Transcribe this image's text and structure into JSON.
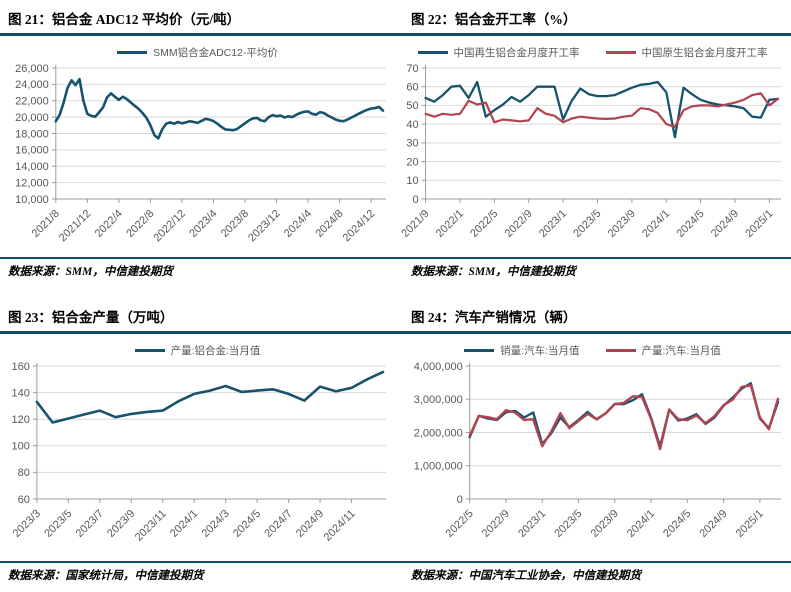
{
  "theme": {
    "rule_color": "#134d66",
    "grid_color": "#d9d9d9",
    "axis_color": "#9c9c9c",
    "tick_text_color": "#595959",
    "blue": "#17536e",
    "red": "#b2434f"
  },
  "chart_data": [
    {
      "type": "line",
      "title": "图 21：铝合金 ADC12 平均价（元/吨）",
      "source": "数据来源：SMM，中信建投期货",
      "legend_position": "top",
      "grid": true,
      "ylim": [
        10000,
        26000
      ],
      "y_step": 2000,
      "y_format": "comma",
      "x_start": "2021/8",
      "x_freq": "semi-monthly",
      "x_ticks": [
        "2021/8",
        "2021/12",
        "2022/4",
        "2022/8",
        "2022/12",
        "2023/4",
        "2023/8",
        "2023/12",
        "2024/4",
        "2024/8",
        "2024/12"
      ],
      "x_tick_every": 8,
      "series": [
        {
          "name": "SMM铝合金ADC12-平均价",
          "color": "#17536e",
          "width": 2.6,
          "values": [
            19500,
            20300,
            21800,
            23600,
            24500,
            23900,
            24650,
            22000,
            20400,
            20150,
            20050,
            20600,
            21200,
            22400,
            22900,
            22500,
            22100,
            22500,
            22200,
            21800,
            21400,
            21000,
            20500,
            19900,
            19000,
            17800,
            17400,
            18500,
            19200,
            19350,
            19200,
            19400,
            19250,
            19350,
            19500,
            19400,
            19300,
            19550,
            19800,
            19700,
            19500,
            19200,
            18800,
            18500,
            18450,
            18400,
            18550,
            18900,
            19250,
            19600,
            19850,
            19900,
            19600,
            19500,
            20000,
            20250,
            20100,
            20200,
            19950,
            20100,
            20000,
            20300,
            20500,
            20650,
            20700,
            20400,
            20300,
            20600,
            20500,
            20200,
            19950,
            19700,
            19550,
            19500,
            19700,
            19950,
            20200,
            20450,
            20700,
            20900,
            21050,
            21100,
            21250,
            20800
          ]
        }
      ]
    },
    {
      "type": "line",
      "title": "图 22：铝合金开工率（%）",
      "source": "数据来源：SMM，中信建投期货",
      "legend_position": "top",
      "grid": true,
      "ylim": [
        0,
        70
      ],
      "y_step": 10,
      "y_format": "plain",
      "x_start": "2021/9",
      "x_freq": "monthly",
      "x_ticks": [
        "2021/9",
        "2022/1",
        "2022/5",
        "2022/9",
        "2023/1",
        "2023/5",
        "2023/9",
        "2024/1",
        "2024/5",
        "2024/9",
        "2025/1"
      ],
      "x_tick_every": 4,
      "series": [
        {
          "name": "中国再生铝合金月度开工率",
          "color": "#17536e",
          "width": 2.3,
          "values": [
            54,
            52,
            55.5,
            60,
            60.5,
            54,
            62.5,
            44,
            47.5,
            50.5,
            54.5,
            52,
            55.5,
            60,
            60,
            60,
            42.5,
            52.5,
            59,
            56,
            55,
            55,
            55.5,
            57.5,
            59.5,
            61,
            61.5,
            62.5,
            57,
            33,
            59.5,
            56,
            53,
            51.5,
            50.5,
            50,
            49.5,
            48.5,
            44,
            43.5,
            53,
            53.5
          ]
        },
        {
          "name": "中国原生铝合金月度开工率",
          "color": "#b2434f",
          "width": 2.2,
          "values": [
            45.5,
            44,
            45.5,
            45,
            45.5,
            52.5,
            50.5,
            51.5,
            41,
            42.5,
            42,
            41.5,
            42,
            48.5,
            45.5,
            44.5,
            41,
            43,
            44,
            43.5,
            43,
            42.8,
            43,
            44,
            44.5,
            48.5,
            48,
            46,
            40,
            38.5,
            47.5,
            49.5,
            50,
            50,
            49.5,
            50.5,
            51.5,
            53,
            55.5,
            56.5,
            50,
            53.5
          ]
        }
      ]
    },
    {
      "type": "line",
      "title": "图 23：铝合金产量（万吨）",
      "source": "数据来源：国家统计局，中信建投期货",
      "legend_position": "top",
      "grid": true,
      "ylim": [
        60,
        160
      ],
      "y_step": 20,
      "y_format": "plain",
      "x_start": "2023/3",
      "x_freq": "monthly",
      "x_ticks": [
        "2023/3",
        "2023/5",
        "2023/7",
        "2023/9",
        "2023/11",
        "2024/1",
        "2024/3",
        "2024/5",
        "2024/7",
        "2024/9",
        "2024/11"
      ],
      "x_tick_every": 2,
      "series": [
        {
          "name": "产量:铝合金:当月值",
          "color": "#17536e",
          "width": 2.6,
          "values": [
            133,
            117.5,
            120.5,
            123.5,
            126.5,
            121.5,
            124,
            125.5,
            126.5,
            133.5,
            139,
            141.5,
            145,
            140.5,
            141.5,
            142.5,
            139,
            134,
            144.5,
            141,
            143.5,
            150,
            155.5
          ]
        }
      ]
    },
    {
      "type": "line",
      "title": "图 24：汽车产销情况（辆）",
      "source": "数据来源：中国汽车工业协会，中信建投期货",
      "legend_position": "top",
      "grid": true,
      "ylim": [
        0,
        4000000
      ],
      "y_step": 1000000,
      "y_format": "comma",
      "x_start": "2022/5",
      "x_freq": "monthly",
      "x_ticks": [
        "2022/5",
        "2022/9",
        "2023/1",
        "2023/5",
        "2023/9",
        "2024/1",
        "2024/5",
        "2024/9",
        "2025/1"
      ],
      "x_tick_every": 4,
      "series": [
        {
          "name": "销量:汽车:当月值",
          "color": "#17536e",
          "width": 2.4,
          "values": [
            1860000,
            2500000,
            2420000,
            2380000,
            2610000,
            2650000,
            2450000,
            2600000,
            1650000,
            1980000,
            2450000,
            2160000,
            2380000,
            2620000,
            2390000,
            2580000,
            2860000,
            2850000,
            2970000,
            3150000,
            2440000,
            1580000,
            2690000,
            2360000,
            2420000,
            2550000,
            2260000,
            2450000,
            2810000,
            3050000,
            3320000,
            3480000,
            2420000,
            2130000,
            2920000
          ]
        },
        {
          "name": "产量:汽车:当月值",
          "color": "#b2434f",
          "width": 2.4,
          "values": [
            1900000,
            2500000,
            2460000,
            2400000,
            2670000,
            2600000,
            2380000,
            2400000,
            1590000,
            2030000,
            2580000,
            2130000,
            2350000,
            2560000,
            2400000,
            2570000,
            2850000,
            2890000,
            3090000,
            3070000,
            2410000,
            1500000,
            2690000,
            2400000,
            2370000,
            2510000,
            2280000,
            2490000,
            2820000,
            2990000,
            3370000,
            3420000,
            2450000,
            2100000,
            3010000
          ]
        }
      ]
    }
  ]
}
